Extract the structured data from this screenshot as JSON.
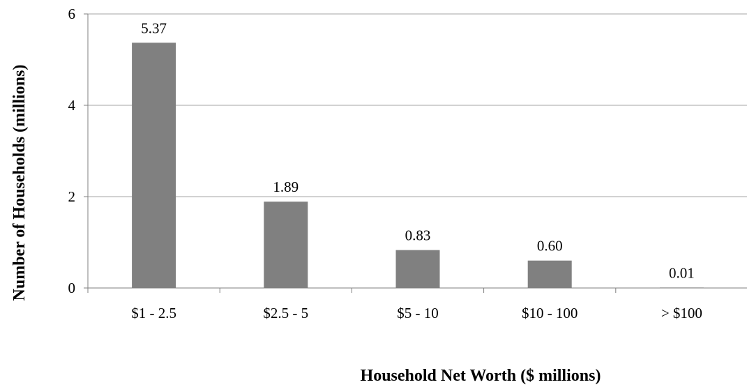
{
  "chart_data": {
    "type": "bar",
    "title": "",
    "xlabel": "Household Net Worth  ($ millions)",
    "ylabel": "Number of Households (millions)",
    "categories": [
      "$1 - 2.5",
      "$2.5 - 5",
      "$5 - 10",
      "$10 - 100",
      "> $100"
    ],
    "values": [
      5.37,
      1.89,
      0.83,
      0.6,
      0.01
    ],
    "data_labels": [
      "5.37",
      "1.89",
      "0.83",
      "0.60",
      "0.01"
    ],
    "ylim": [
      0,
      6
    ],
    "yticks": [
      0,
      2,
      4,
      6
    ],
    "grid": true,
    "legend": "none",
    "colors": {
      "bar": "#808080",
      "grid": "#a6a6a6",
      "axis": "#7f7f7f"
    }
  }
}
